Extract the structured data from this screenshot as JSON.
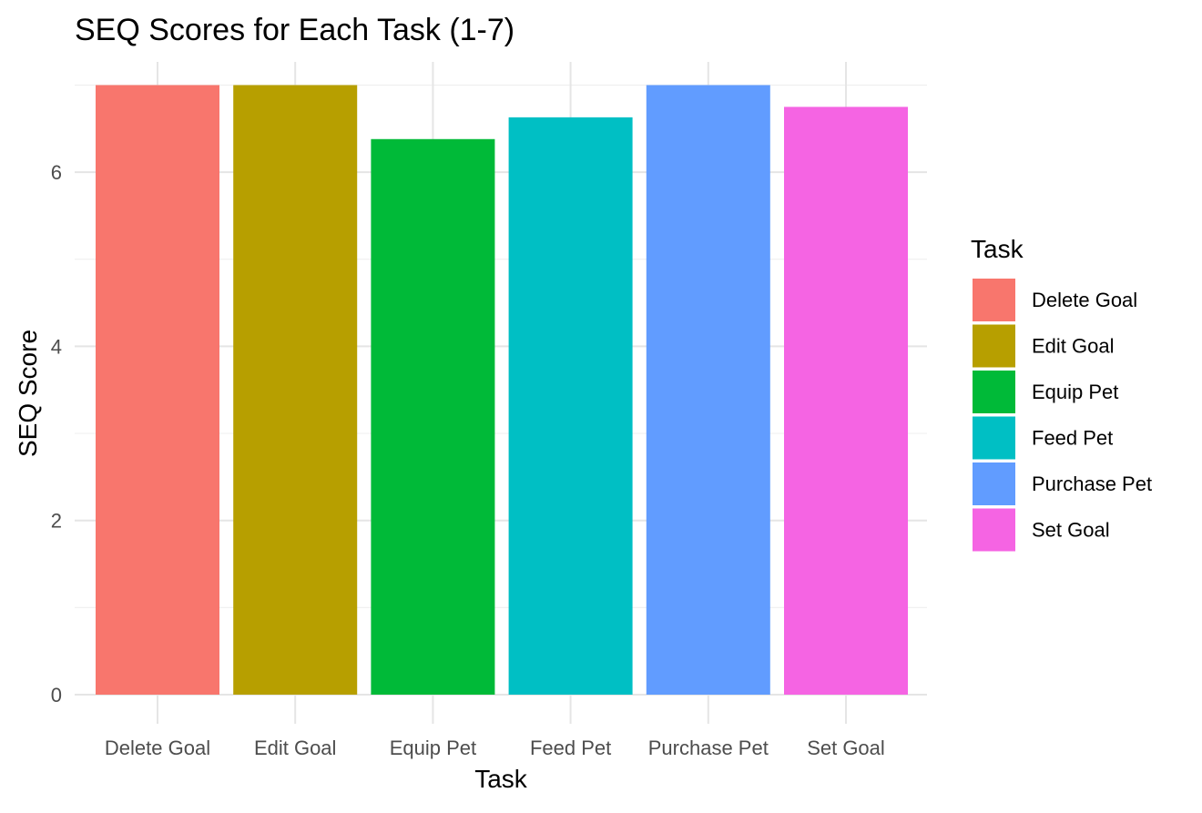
{
  "chart_data": {
    "type": "bar",
    "title": "SEQ Scores for Each Task (1-7)",
    "xlabel": "Task",
    "ylabel": "SEQ Score",
    "categories": [
      "Delete Goal",
      "Edit Goal",
      "Equip Pet",
      "Feed Pet",
      "Purchase Pet",
      "Set Goal"
    ],
    "values": [
      7.0,
      7.0,
      6.38,
      6.63,
      7.0,
      6.75
    ],
    "colors": [
      "#F8766D",
      "#B79F00",
      "#00BA38",
      "#00BFC4",
      "#619CFF",
      "#F564E3"
    ],
    "ylim": [
      0,
      7.35
    ],
    "yticks": [
      0,
      2,
      4,
      6
    ],
    "grid": true,
    "legend": {
      "title": "Task",
      "position": "right",
      "entries": [
        "Delete Goal",
        "Edit Goal",
        "Equip Pet",
        "Feed Pet",
        "Purchase Pet",
        "Set Goal"
      ]
    }
  }
}
